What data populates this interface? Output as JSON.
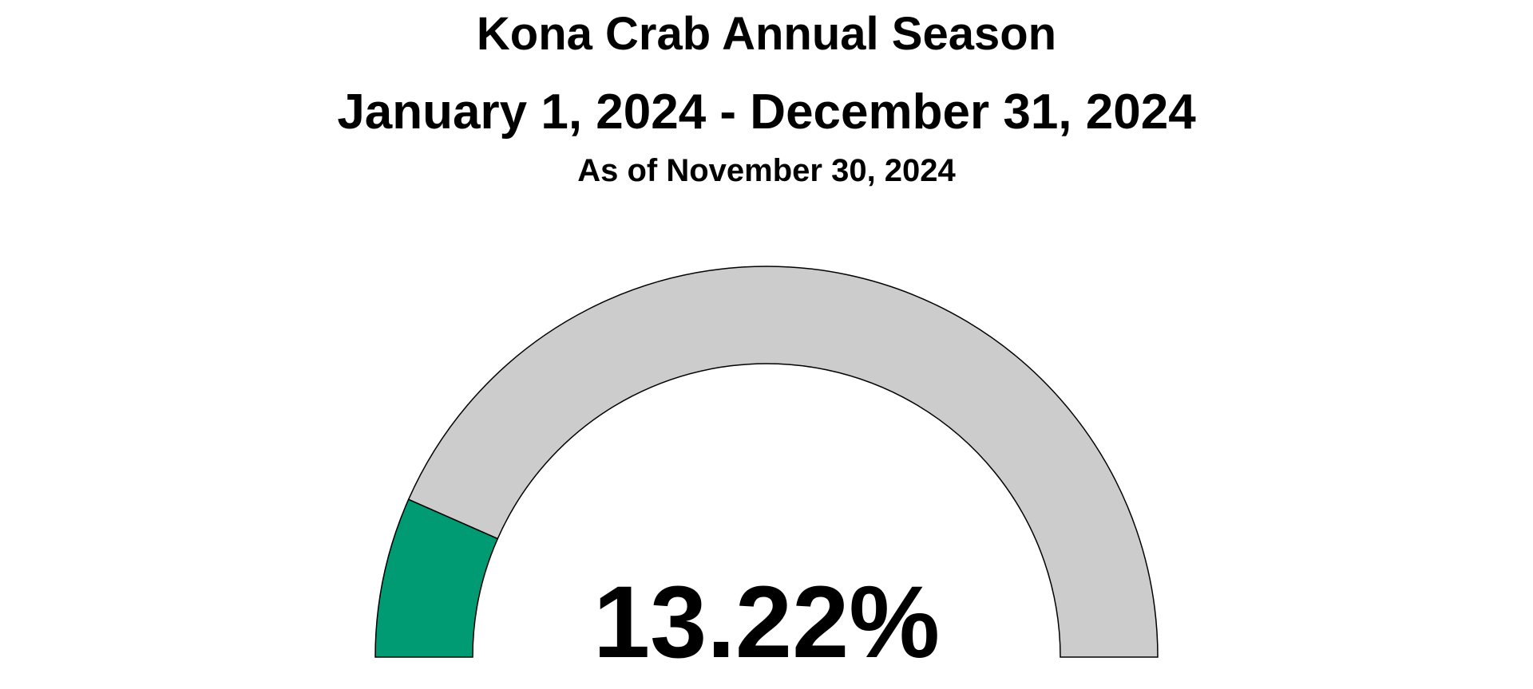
{
  "chart_data": {
    "type": "gauge",
    "title": "Kona Crab Annual Season",
    "subtitle": "January 1, 2024 - December 31, 2024",
    "as_of": "As of November 30, 2024",
    "value_percent": 13.22,
    "value_label": "13.22%",
    "range": [
      0,
      100
    ],
    "colors": {
      "filled": "#009B72",
      "remaining": "#CCCCCC",
      "outline": "#000000"
    }
  }
}
